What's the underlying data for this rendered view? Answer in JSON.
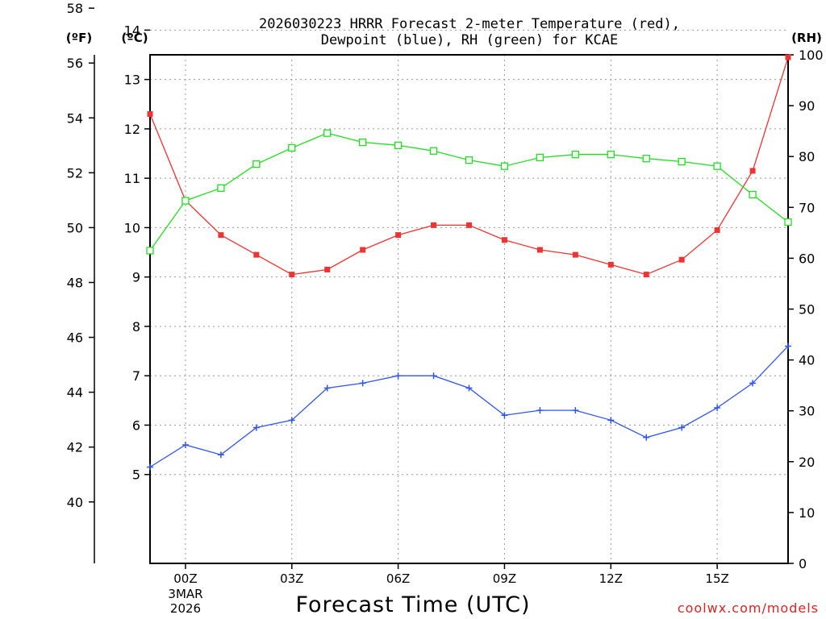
{
  "chart_data": {
    "type": "line",
    "title_line1": "2026030223 HRRR Forecast 2-meter Temperature (red),",
    "title_line2": "Dewpoint (blue), RH (green) for KCAE",
    "xlabel": "Forecast Time (UTC)",
    "date_label_line1": "3MAR",
    "date_label_line2": "2026",
    "credit": "coolwx.com/models",
    "axis_unit_f": "(ºF)",
    "axis_unit_c": "(ºC)",
    "axis_unit_rh": "(RH)",
    "x_hours": [
      -1,
      0,
      1,
      2,
      3,
      4,
      5,
      6,
      7,
      8,
      9,
      10,
      11,
      12,
      13,
      14,
      15,
      16,
      17
    ],
    "x_ticks": [
      {
        "hour": 0,
        "label": "00Z"
      },
      {
        "hour": 3,
        "label": "03Z"
      },
      {
        "hour": 6,
        "label": "06Z"
      },
      {
        "hour": 9,
        "label": "09Z"
      },
      {
        "hour": 12,
        "label": "12Z"
      },
      {
        "hour": 15,
        "label": "15Z"
      }
    ],
    "xlim": [
      -1,
      17
    ],
    "celsius_ylim": [
      3.2,
      13.5
    ],
    "fahrenheit_ticks": [
      40,
      42,
      44,
      46,
      48,
      50,
      52,
      54,
      56,
      58
    ],
    "celsius_ticks": [
      5,
      6,
      7,
      8,
      9,
      10,
      11,
      12,
      13,
      14
    ],
    "rh_ylim": [
      0,
      100
    ],
    "rh_ticks": [
      0,
      10,
      20,
      30,
      40,
      50,
      60,
      70,
      80,
      90,
      100
    ],
    "series": [
      {
        "name": "Temperature",
        "unit": "C",
        "color": "#ee3333",
        "marker": "filled-square",
        "values": [
          12.3,
          10.55,
          9.85,
          9.45,
          9.05,
          9.15,
          9.55,
          9.85,
          10.05,
          10.05,
          9.75,
          9.55,
          9.45,
          9.25,
          9.05,
          9.35,
          9.95,
          11.15,
          13.45
        ]
      },
      {
        "name": "Dewpoint",
        "unit": "C",
        "color": "#3355ee",
        "marker": "plus",
        "values": [
          5.15,
          5.6,
          5.4,
          5.95,
          6.1,
          6.75,
          6.85,
          7.0,
          7.0,
          6.75,
          6.2,
          6.3,
          6.3,
          6.1,
          5.75,
          5.95,
          6.35,
          6.85,
          7.6
        ]
      },
      {
        "name": "RH",
        "unit": "%",
        "color": "#22dd22",
        "marker": "open-square",
        "values": [
          61.5,
          71.3,
          73.8,
          78.5,
          81.7,
          84.6,
          82.8,
          82.2,
          81.1,
          79.3,
          78.1,
          79.8,
          80.4,
          80.4,
          79.6,
          79.0,
          78.1,
          72.5,
          67.1
        ]
      }
    ],
    "grid": true
  }
}
